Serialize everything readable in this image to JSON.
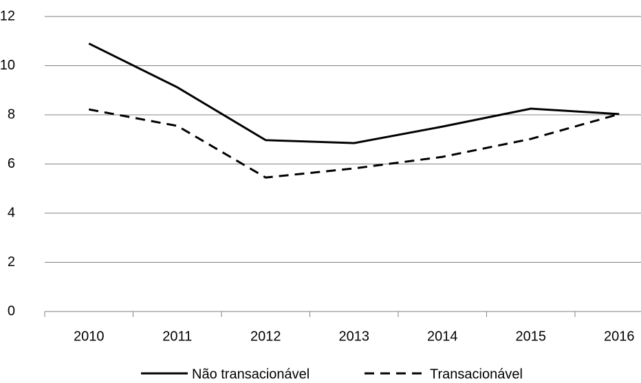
{
  "chart_data": {
    "type": "line",
    "categories": [
      "2010",
      "2011",
      "2012",
      "2013",
      "2014",
      "2015",
      "2016"
    ],
    "series": [
      {
        "name": "Não transacionável",
        "color": "#000000",
        "dash": "solid",
        "values": [
          10.9,
          9.12,
          6.97,
          6.85,
          7.52,
          8.25,
          8.03
        ]
      },
      {
        "name": "Transacionável",
        "color": "#000000",
        "dash": "dashed",
        "values": [
          8.22,
          7.55,
          5.45,
          5.82,
          6.29,
          7.02,
          8.03
        ]
      }
    ],
    "ylim": [
      0,
      12
    ],
    "yticks": [
      0,
      2,
      4,
      6,
      8,
      10,
      12
    ],
    "grid": true,
    "legend": "bottom"
  }
}
